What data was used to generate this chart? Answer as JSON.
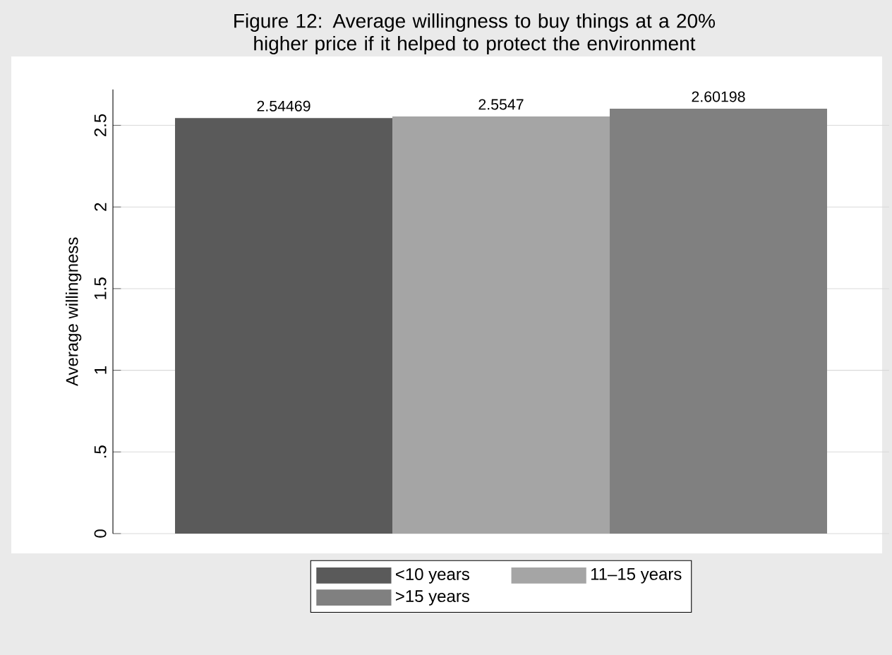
{
  "chart_data": {
    "type": "bar",
    "title": "Figure 12: Average willingness to buy things at a 20% higher price if it helped to protect the environment",
    "ylabel": "Average willingness",
    "categories": [
      null
    ],
    "series": [
      {
        "name": "<10 years",
        "color": "#5a5a5a",
        "values": [
          2.54469
        ]
      },
      {
        "name": "11–15 years",
        "color": "#a5a5a5",
        "values": [
          2.5547
        ]
      },
      {
        "name": ">15 years",
        "color": "#808080",
        "values": [
          2.60198
        ]
      }
    ],
    "ylim": [
      0,
      2.72
    ],
    "yticks": [
      0,
      {
        "value": 0.5,
        "label": ".5"
      },
      1,
      1.5,
      2,
      2.5
    ],
    "grid": "y",
    "legend": "bottom",
    "data_labels": true
  }
}
